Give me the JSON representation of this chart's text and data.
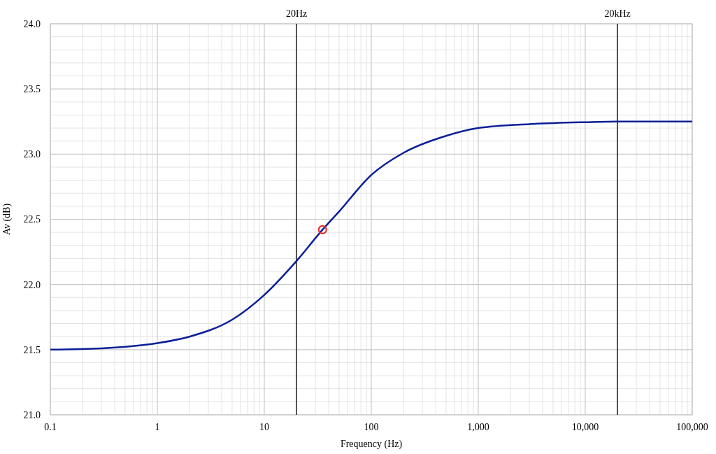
{
  "chart_data": {
    "type": "line",
    "xlabel": "Frequency (Hz)",
    "ylabel": "Av (dB)",
    "log": "x",
    "xlim": [
      0.1,
      100000
    ],
    "ylim": [
      21,
      24
    ],
    "xticks": [
      0.1,
      1,
      10,
      100,
      {
        "value": 1000,
        "label": "1,000"
      },
      {
        "value": 10000,
        "label": "10,000"
      },
      {
        "value": 100000,
        "label": "100,000"
      }
    ],
    "yticks": [
      {
        "value": 21,
        "label": "21.0"
      },
      21.5,
      {
        "value": 22,
        "label": "22.0"
      },
      22.5,
      {
        "value": 23,
        "label": "23.0"
      },
      23.5,
      {
        "value": 24,
        "label": "24.0"
      }
    ],
    "grid": true,
    "ref_lines": [
      {
        "axis": "x",
        "value": 20,
        "label": "20Hz",
        "color": "#000000"
      },
      {
        "axis": "x",
        "value": 20000,
        "label": "20kHz",
        "color": "#000000"
      }
    ],
    "series": [
      {
        "color": "#0a1f96",
        "marker": "none",
        "x": [
          0.1,
          0.3,
          1,
          2,
          5,
          10,
          20,
          35,
          50,
          100,
          200,
          500,
          1000,
          3000,
          10000,
          20000,
          100000
        ],
        "values": [
          21.5,
          21.51,
          21.55,
          21.6,
          21.73,
          21.92,
          22.18,
          22.42,
          22.56,
          22.84,
          23.01,
          23.14,
          23.2,
          23.23,
          23.245,
          23.25,
          23.25
        ]
      },
      {
        "type": "scatter",
        "color": "#e8312b",
        "marker": "circle",
        "x": [
          35
        ],
        "values": [
          22.42
        ]
      }
    ]
  }
}
